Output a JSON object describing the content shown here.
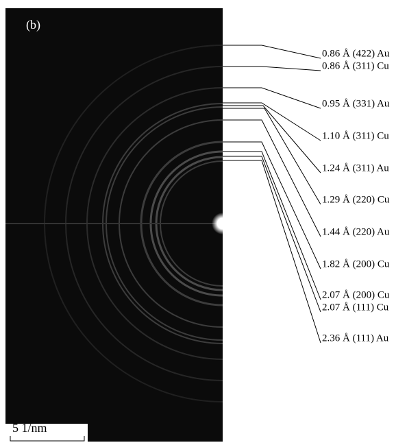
{
  "panel_label": "(b)",
  "scale_bar": {
    "label": "5 1/nm"
  },
  "labels": [
    "0.86 Å (422) Au",
    "0.86 Å (311) Cu",
    "0.95 Å (331) Au",
    "1.10 Å (311) Cu",
    "1.24 Å (311) Au",
    "1.29 Å (220) Cu",
    "1.44 Å (220) Au",
    "1.82 Å (200) Cu",
    "2.07 Å (200) Cu",
    "2.07 Å (111) Cu",
    "2.36 Å (111) Au"
  ]
}
